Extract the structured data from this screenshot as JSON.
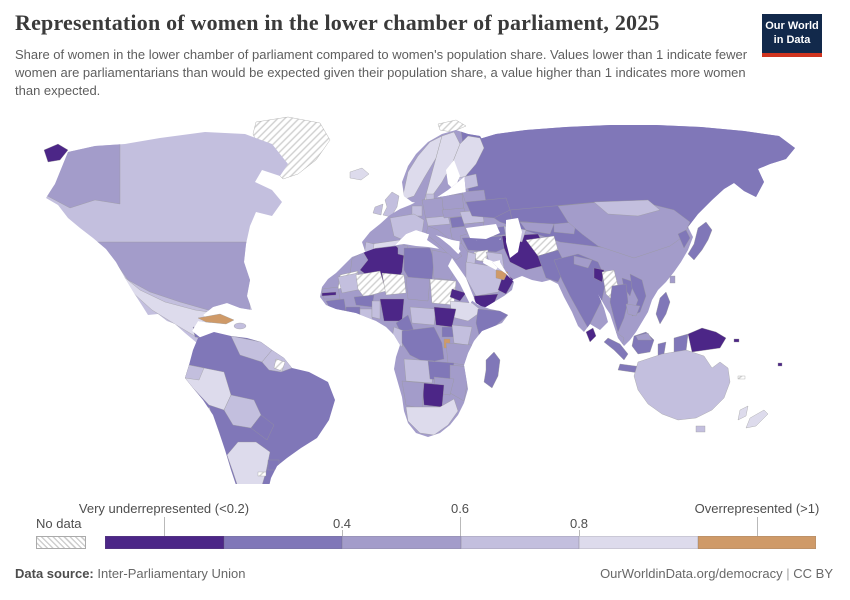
{
  "header": {
    "title": "Representation of women in the lower chamber of parliament, 2025",
    "subtitle": "Share of women in the lower chamber of parliament compared to women's population share. Values lower than 1 indicate fewer women are parliamentarians than would be expected given their population share, a value higher than 1 indicates more women than expected.",
    "logo": {
      "line1": "Our World",
      "line2": "in Data",
      "background": "#12294b",
      "underline": "#d0341f"
    }
  },
  "legend": {
    "no_data_label": "No data",
    "tick_labels": [
      "Very underrepresented (<0.2)",
      "0.4",
      "0.6",
      "0.8",
      "Overrepresented (>1)"
    ],
    "bins": [
      {
        "range": "<0.2",
        "label": "Very underrepresented (<0.2)",
        "color": "#4c2687"
      },
      {
        "range": "0.2–0.4",
        "label": "0.2–0.4",
        "color": "#8077b8"
      },
      {
        "range": "0.4–0.6",
        "label": "0.4–0.6",
        "color": "#a39cca"
      },
      {
        "range": "0.6–0.8",
        "label": "0.6–0.8",
        "color": "#c3bfde"
      },
      {
        "range": "0.8–1",
        "label": "0.8–1",
        "color": "#dddbec"
      },
      {
        "range": ">1",
        "label": "Overrepresented (>1)",
        "color": "#cf9a68"
      }
    ]
  },
  "map": {
    "ocean_color": "#ffffff",
    "border_color": "#9a9a9a",
    "hatch_line_color": "#cfcfcf"
  },
  "chart_data": {
    "type": "choropleth",
    "title": "Representation of women in the lower chamber of parliament, 2025",
    "legend_position": "bottom",
    "bins": [
      {
        "range": "<0.2",
        "color": "#4c2687",
        "label": "Very underrepresented (<0.2)"
      },
      {
        "range": "0.2–0.4",
        "color": "#8077b8"
      },
      {
        "range": "0.4–0.6",
        "color": "#a39cca"
      },
      {
        "range": "0.6–0.8",
        "color": "#c3bfde"
      },
      {
        "range": "0.8–1",
        "color": "#dddbec"
      },
      {
        "range": ">1",
        "color": "#cf9a68",
        "label": "Overrepresented (>1)"
      }
    ],
    "no_data": {
      "label": "No data",
      "style": "white with gray diagonal hatching",
      "examples": [
        "Greenland",
        "Sudan",
        "Mali",
        "Niger",
        "Afghanistan",
        "Myanmar",
        "Syria",
        "Western Sahara",
        "Svalbard"
      ]
    },
    "examples_by_bin": {
      "<0.2": [
        "Iran",
        "Yemen",
        "Oman",
        "Algeria",
        "Nigeria",
        "Papua New Guinea",
        "Sri Lanka",
        "Botswana",
        "Bangladesh",
        "Eritrea",
        "The Gambia",
        "Fiji"
      ],
      "0.2–0.4": [
        "Russia",
        "Brazil",
        "India",
        "Japan",
        "Turkey",
        "Ukraine",
        "Indonesia",
        "Hungary",
        "Thailand",
        "Vietnam"
      ],
      "0.4–0.6": [
        "United States",
        "China",
        "Germany",
        "Poland",
        "Italy",
        "Greece",
        "Tanzania",
        "Egypt"
      ],
      "0.6–0.8": [
        "Canada",
        "Australia",
        "United Kingdom",
        "France",
        "Saudi Arabia",
        "Mongolia",
        "Kenya",
        "Ghana"
      ],
      "0.8–1": [
        "Mexico",
        "Spain",
        "Norway",
        "Sweden",
        "Finland",
        "Peru",
        "Argentina",
        "Ethiopia",
        "South Africa",
        "New Zealand"
      ],
      ">1": [
        "Cuba",
        "Nicaragua",
        "United Arab Emirates",
        "Rwanda"
      ]
    }
  },
  "footer": {
    "source_label": "Data source:",
    "source_value": "Inter-Parliamentary Union",
    "site_text": "OurWorldinData.org/democracy",
    "separator": "|",
    "license": "CC BY"
  }
}
